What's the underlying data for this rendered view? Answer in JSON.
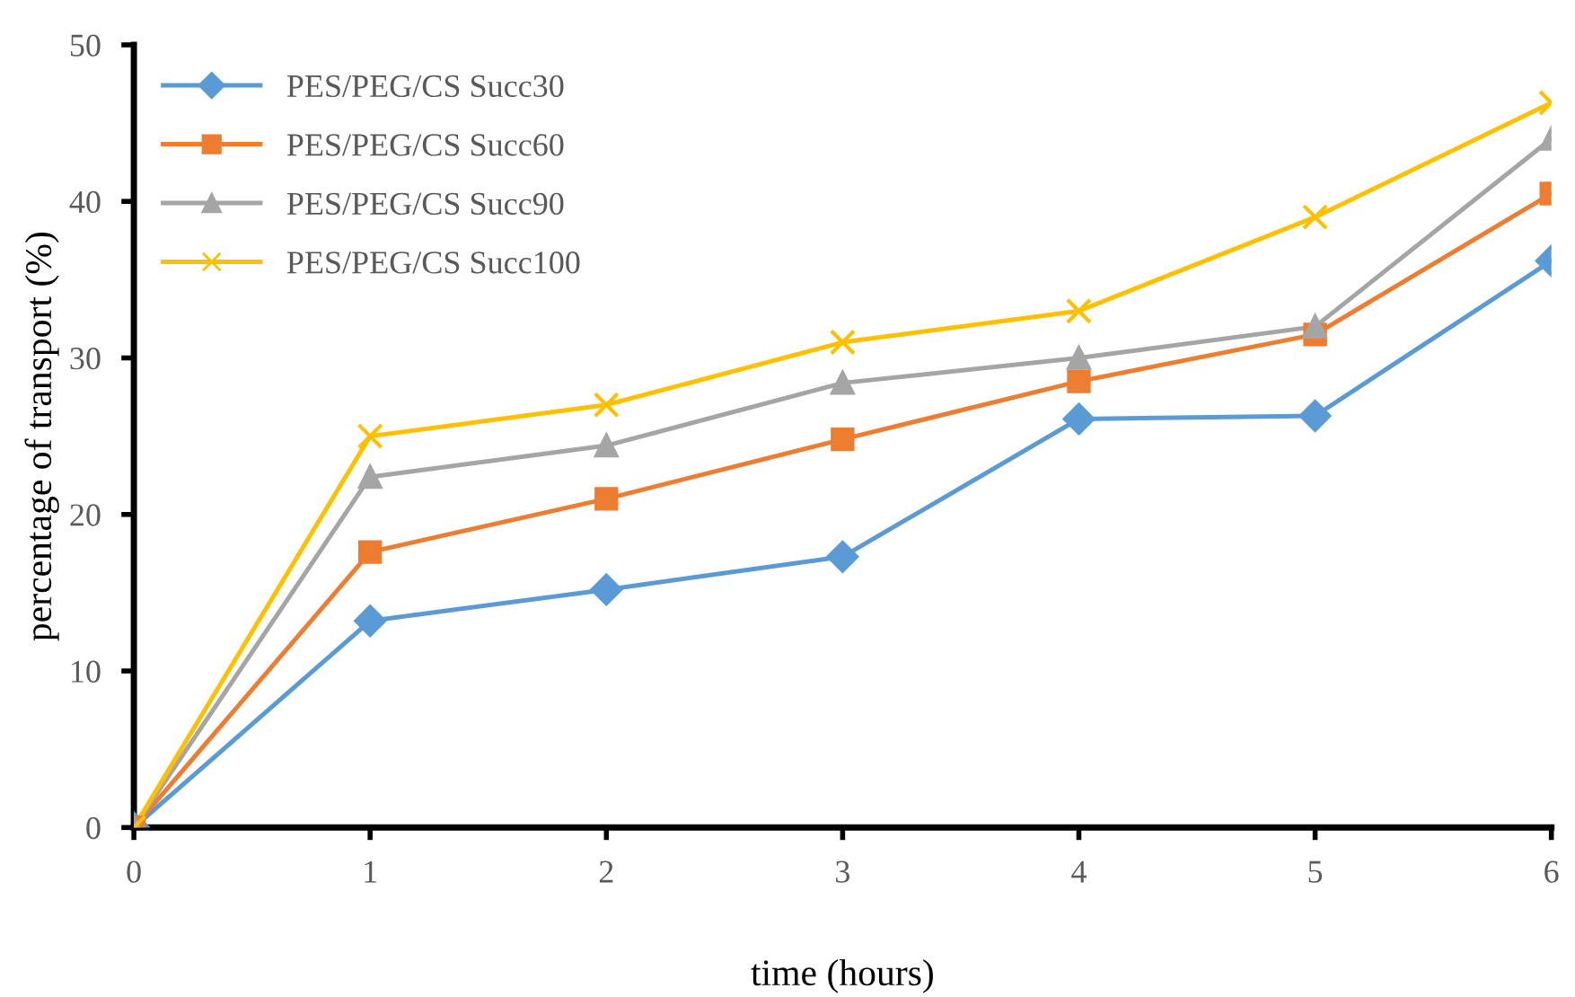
{
  "chart_data": {
    "type": "line",
    "xlabel": "time (hours)",
    "ylabel": "percentage of transport (%)",
    "x": [
      0,
      1,
      2,
      3,
      4,
      5,
      6
    ],
    "xlim": [
      0,
      6
    ],
    "xticks": [
      0,
      1,
      2,
      3,
      4,
      5,
      6
    ],
    "ylim": [
      0,
      50
    ],
    "yticks": [
      0,
      10,
      20,
      30,
      40,
      50
    ],
    "grid": false,
    "legend": "top left",
    "line_style": "solid",
    "series": [
      {
        "name": "PES/PEG/CS Succ30",
        "color": "#5b9bd5",
        "marker": "diamond",
        "values": [
          0,
          13.2,
          15.2,
          17.3,
          26.1,
          26.3,
          36.2
        ]
      },
      {
        "name": "PES/PEG/CS Succ60",
        "color": "#ed7d31",
        "marker": "square",
        "values": [
          0,
          17.6,
          21.0,
          24.8,
          28.5,
          31.5,
          40.5
        ]
      },
      {
        "name": "PES/PEG/CS Succ90",
        "color": "#a5a5a5",
        "marker": "triangle",
        "values": [
          0,
          22.4,
          24.4,
          28.4,
          30.0,
          32.0,
          44.0
        ]
      },
      {
        "name": "PES/PEG/CS Succ100",
        "color": "#ffc000",
        "marker": "cross",
        "values": [
          0,
          25.0,
          27.0,
          31.0,
          33.0,
          39.0,
          46.3
        ]
      }
    ]
  }
}
